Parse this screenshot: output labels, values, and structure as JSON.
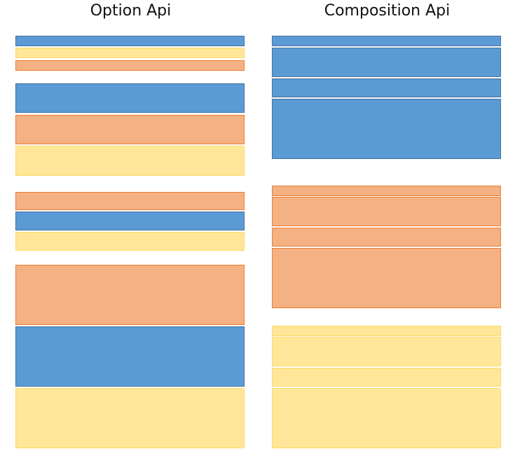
{
  "titles": {
    "option_api": "Option Api",
    "composition_api": "Composition Api"
  },
  "colors": {
    "blue": "#5b9bd5",
    "orange": "#f4b183",
    "yellow": "#ffe699"
  },
  "option_api": {
    "blocks": [
      "blue",
      "yellow",
      "orange",
      "blue",
      "orange",
      "yellow",
      "orange",
      "blue",
      "yellow",
      "orange",
      "blue",
      "yellow"
    ]
  },
  "composition_api": {
    "blocks": [
      "blue",
      "blue",
      "blue",
      "blue",
      "orange",
      "orange",
      "orange",
      "orange",
      "yellow",
      "yellow",
      "yellow",
      "yellow"
    ]
  }
}
